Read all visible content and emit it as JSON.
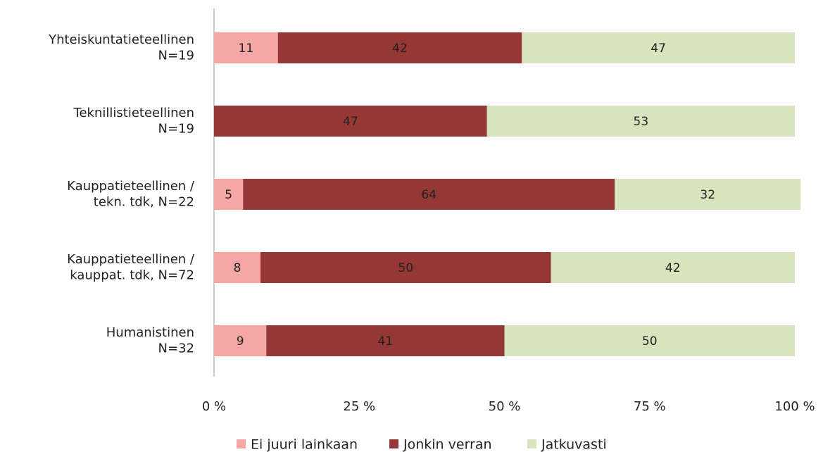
{
  "chart_data": {
    "type": "stacked_barh",
    "categories": [
      [
        "Yhteiskuntatieteellinen",
        "N=19"
      ],
      [
        "Teknillistieteellinen",
        "N=19"
      ],
      [
        "Kauppatieteellinen /",
        "tekn. tdk, N=22"
      ],
      [
        "Kauppatieteellinen /",
        "kauppat. tdk, N=72"
      ],
      [
        "Humanistinen",
        "N=32"
      ]
    ],
    "series": [
      {
        "name": "Ei juuri lainkaan",
        "color": "#f4a7a5",
        "values": [
          11,
          null,
          5,
          8,
          9
        ]
      },
      {
        "name": "Jonkin verran",
        "color": "#953735",
        "values": [
          42,
          47,
          64,
          50,
          41
        ]
      },
      {
        "name": "Jatkuvasti",
        "color": "#d7e4bd",
        "values": [
          47,
          53,
          32,
          42,
          50
        ]
      }
    ],
    "xlim": [
      0,
      100
    ],
    "xticks": [
      {
        "value": 0,
        "label": "0 %"
      },
      {
        "value": 25,
        "label": "25 %"
      },
      {
        "value": 50,
        "label": "50 %"
      },
      {
        "value": 75,
        "label": "75 %"
      },
      {
        "value": 100,
        "label": "100 %"
      }
    ],
    "legend": "bottom"
  }
}
